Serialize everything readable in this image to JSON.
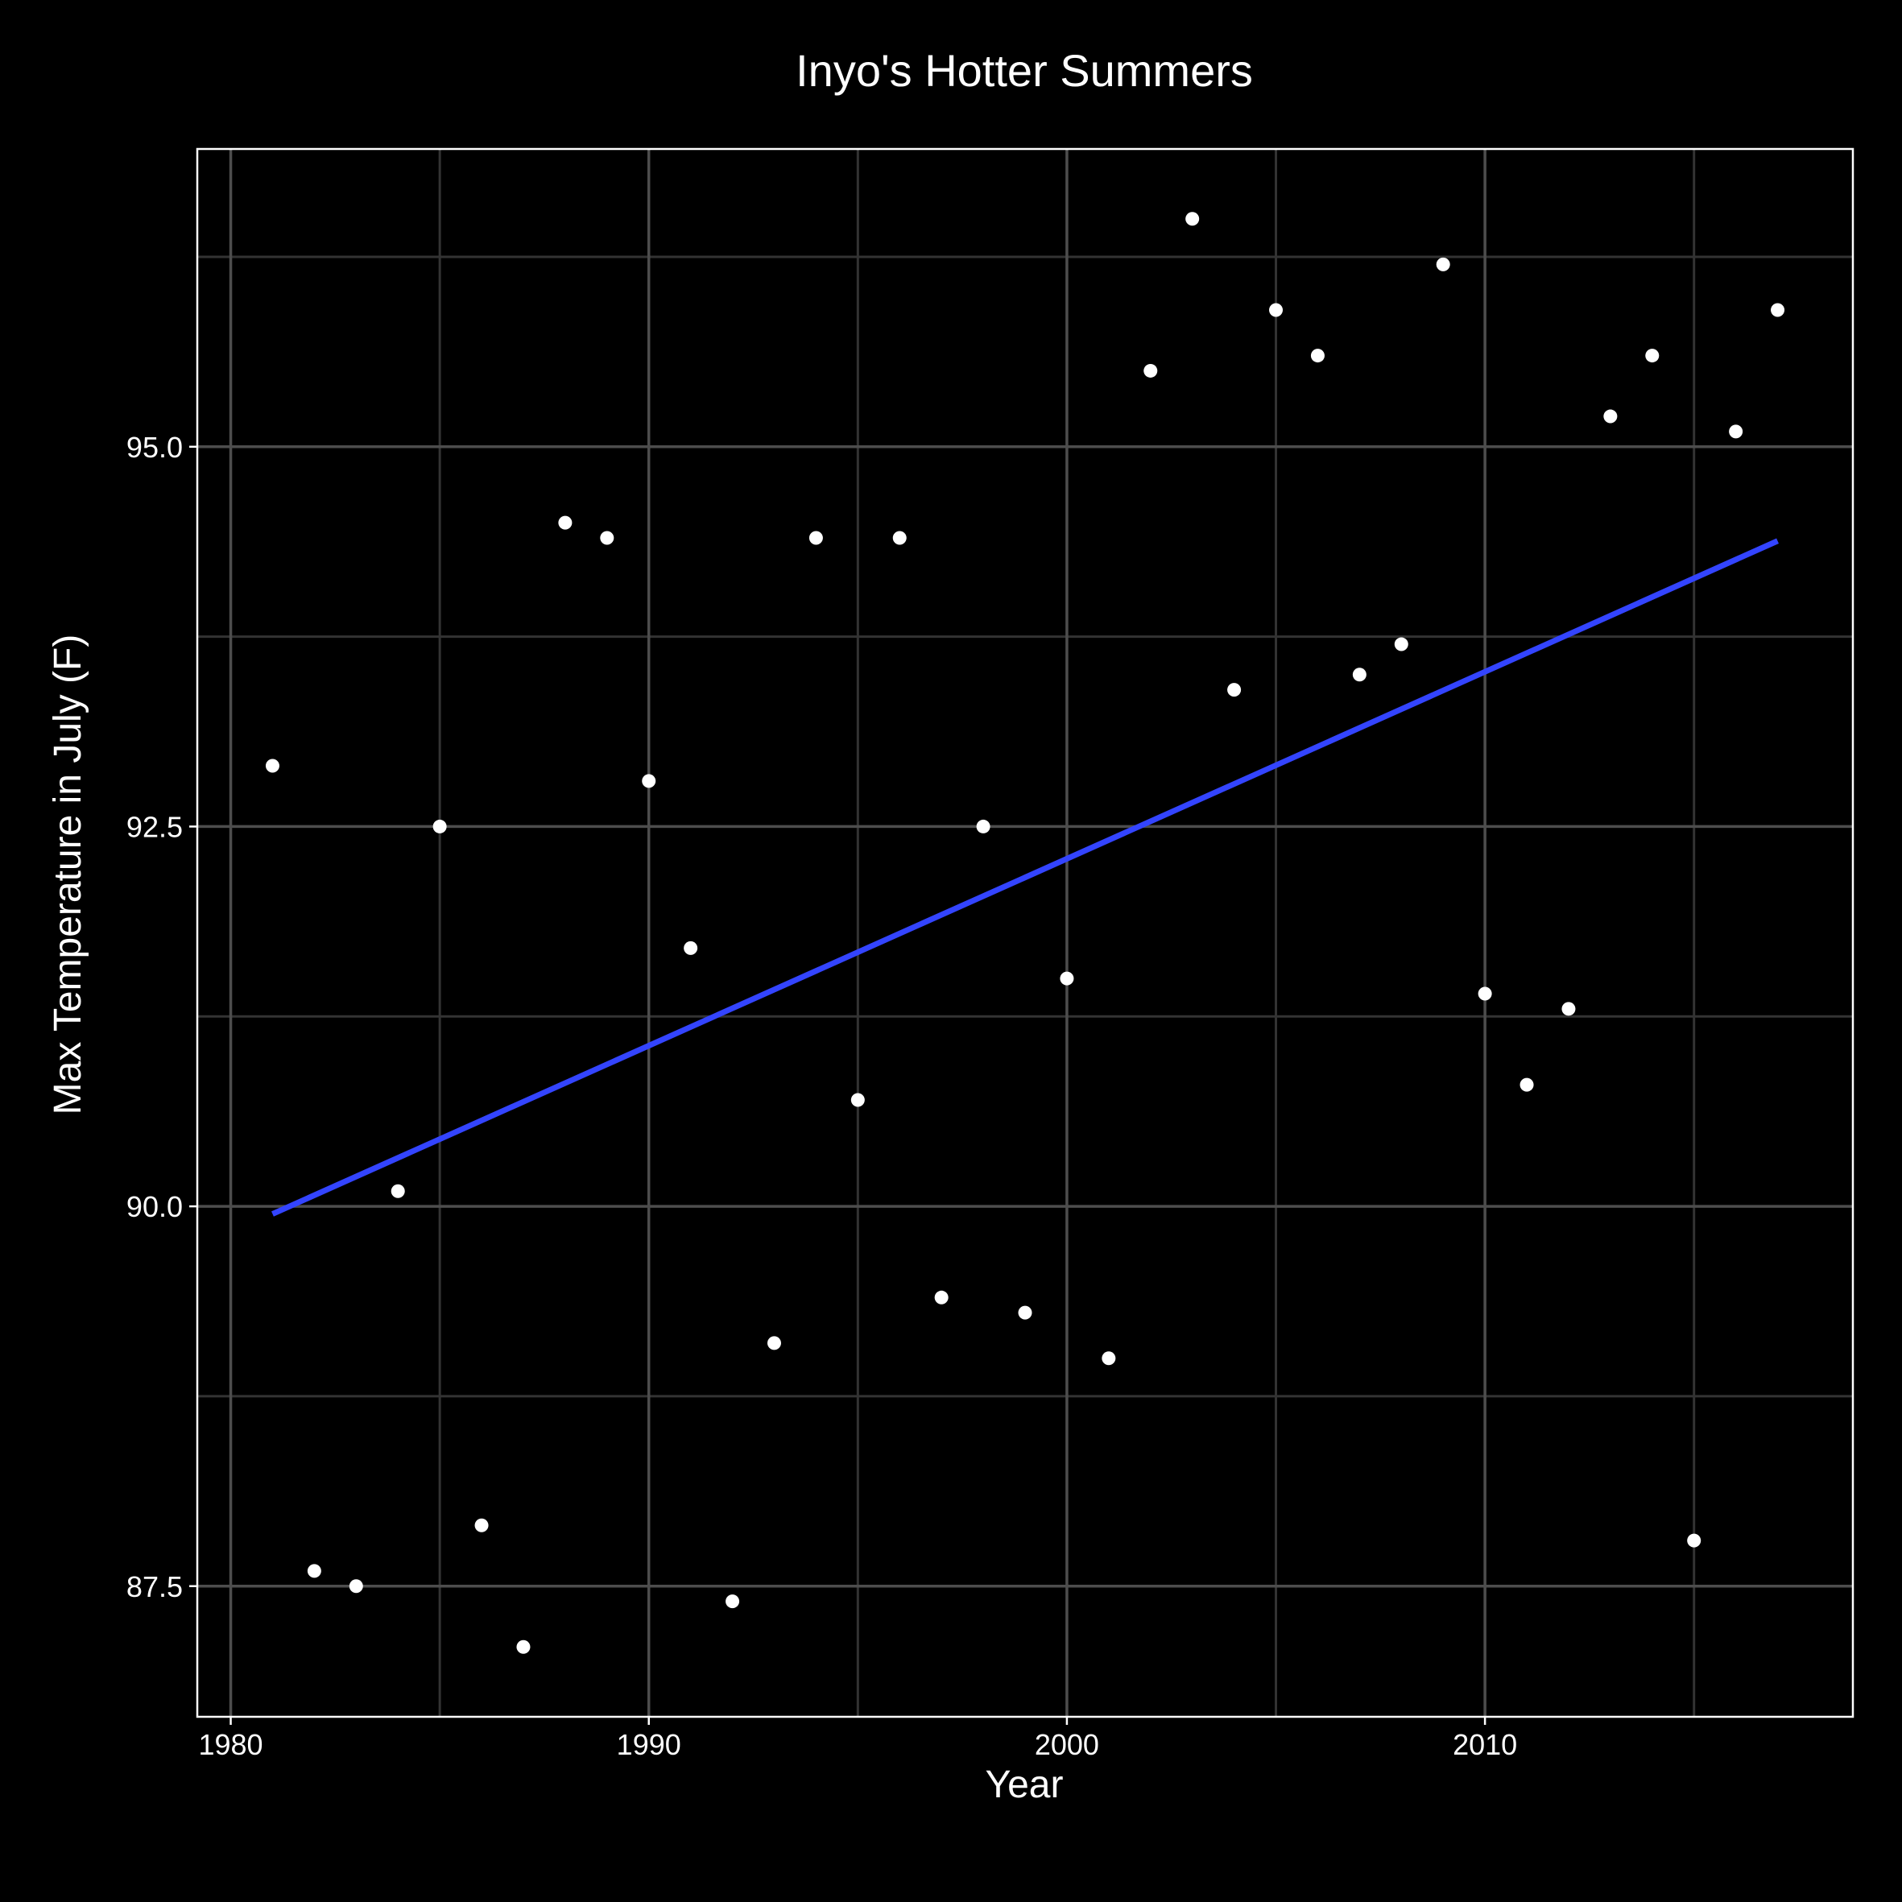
{
  "chart_data": {
    "type": "scatter",
    "title": "Inyo's Hotter Summers",
    "xlabel": "Year",
    "ylabel": "Max Temperature in July (F)",
    "xlim": [
      1979.2,
      2018.8
    ],
    "ylim": [
      86.64,
      96.96
    ],
    "x_ticks": [
      1980,
      1990,
      2000,
      2010
    ],
    "x_tick_labels": [
      "1980",
      "1990",
      "2000",
      "2010"
    ],
    "y_ticks": [
      87.5,
      90.0,
      92.5,
      95.0
    ],
    "y_tick_labels": [
      "87.5",
      "90.0",
      "92.5",
      "95.0"
    ],
    "x_minor_ticks": [
      1985,
      1995,
      2005,
      2015
    ],
    "y_minor_ticks": [
      88.75,
      91.25,
      93.75,
      96.25
    ],
    "grid": true,
    "colors": {
      "background": "#000000",
      "panel_border": "#ffffff",
      "grid_major": "#4d4d4d",
      "grid_minor": "#333333",
      "points": "#ffffff",
      "trend_line": "#3344ff",
      "text": "#ffffff"
    },
    "points": [
      {
        "x": 1981,
        "y": 92.9
      },
      {
        "x": 1982,
        "y": 87.6
      },
      {
        "x": 1983,
        "y": 87.5
      },
      {
        "x": 1984,
        "y": 90.1
      },
      {
        "x": 1985,
        "y": 92.5
      },
      {
        "x": 1986,
        "y": 87.9
      },
      {
        "x": 1987,
        "y": 87.1
      },
      {
        "x": 1988,
        "y": 94.5
      },
      {
        "x": 1989,
        "y": 94.4
      },
      {
        "x": 1990,
        "y": 92.8
      },
      {
        "x": 1991,
        "y": 91.7
      },
      {
        "x": 1992,
        "y": 87.4
      },
      {
        "x": 1993,
        "y": 89.1
      },
      {
        "x": 1994,
        "y": 94.4
      },
      {
        "x": 1995,
        "y": 90.7
      },
      {
        "x": 1996,
        "y": 94.4
      },
      {
        "x": 1997,
        "y": 89.4
      },
      {
        "x": 1998,
        "y": 92.5
      },
      {
        "x": 1999,
        "y": 89.3
      },
      {
        "x": 2000,
        "y": 91.5
      },
      {
        "x": 2001,
        "y": 89.0
      },
      {
        "x": 2002,
        "y": 95.5
      },
      {
        "x": 2003,
        "y": 96.5
      },
      {
        "x": 2004,
        "y": 93.4
      },
      {
        "x": 2005,
        "y": 95.9
      },
      {
        "x": 2006,
        "y": 95.6
      },
      {
        "x": 2007,
        "y": 93.5
      },
      {
        "x": 2008,
        "y": 93.7
      },
      {
        "x": 2009,
        "y": 96.2
      },
      {
        "x": 2010,
        "y": 91.4
      },
      {
        "x": 2011,
        "y": 90.8
      },
      {
        "x": 2012,
        "y": 91.3
      },
      {
        "x": 2013,
        "y": 95.2
      },
      {
        "x": 2014,
        "y": 95.6
      },
      {
        "x": 2015,
        "y": 87.8
      },
      {
        "x": 2016,
        "y": 95.1
      },
      {
        "x": 2017,
        "y": 95.9
      }
    ],
    "trend_line": {
      "x": [
        1981,
        2017
      ],
      "y": [
        89.95,
        94.38
      ]
    }
  }
}
